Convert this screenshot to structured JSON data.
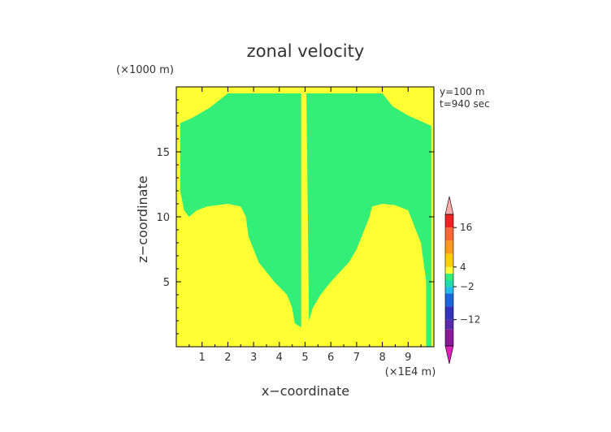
{
  "chart_data": {
    "type": "heatmap",
    "title": "zonal velocity",
    "xlabel": "x−coordinate",
    "ylabel": "z−coordinate",
    "x_unit": "(×1E4 m)",
    "y_unit": "(×1000 m)",
    "annotations": [
      "y=100 m",
      "t=940 sec"
    ],
    "xlim": [
      0,
      10
    ],
    "ylim": [
      0,
      20
    ],
    "x_ticks": [
      1,
      2,
      3,
      4,
      5,
      6,
      7,
      8,
      9
    ],
    "y_ticks": [
      5,
      10,
      15
    ],
    "grid": false,
    "background_color": "#ffff33",
    "regions": [
      {
        "color": "#33ee77",
        "outline": [
          [
            0.15,
            17.2
          ],
          [
            0.6,
            17.6
          ],
          [
            1.3,
            18.4
          ],
          [
            2.0,
            19.5
          ],
          [
            4.85,
            19.5
          ],
          [
            4.85,
            1.5
          ],
          [
            4.6,
            1.8
          ],
          [
            4.5,
            3.0
          ],
          [
            4.3,
            4.0
          ],
          [
            3.8,
            5.0
          ],
          [
            3.2,
            6.5
          ],
          [
            2.8,
            8.5
          ],
          [
            2.7,
            10.0
          ],
          [
            2.5,
            10.8
          ],
          [
            2.0,
            11.0
          ],
          [
            1.2,
            10.8
          ],
          [
            0.8,
            10.5
          ],
          [
            0.5,
            10.0
          ],
          [
            0.3,
            10.5
          ],
          [
            0.15,
            12.0
          ]
        ]
      },
      {
        "color": "#33ee77",
        "outline": [
          [
            5.05,
            19.5
          ],
          [
            8.0,
            19.5
          ],
          [
            8.4,
            18.5
          ],
          [
            9.0,
            17.8
          ],
          [
            9.9,
            17.0
          ],
          [
            9.9,
            0.0
          ],
          [
            9.7,
            0.0
          ],
          [
            9.7,
            5.0
          ],
          [
            9.5,
            8.0
          ],
          [
            9.2,
            9.5
          ],
          [
            9.0,
            10.5
          ],
          [
            8.5,
            10.9
          ],
          [
            8.0,
            11.0
          ],
          [
            7.6,
            10.8
          ],
          [
            7.5,
            10.0
          ],
          [
            7.3,
            9.0
          ],
          [
            7.0,
            7.5
          ],
          [
            6.7,
            6.5
          ],
          [
            6.0,
            5.0
          ],
          [
            5.6,
            4.0
          ],
          [
            5.3,
            3.0
          ],
          [
            5.15,
            2.0
          ]
        ]
      }
    ],
    "colorbar": {
      "tick_labels": [
        "16",
        "4",
        "−2",
        "−12"
      ],
      "tick_values": [
        16,
        4,
        -2,
        -12
      ],
      "segments": [
        {
          "from": -20,
          "to": -15,
          "color": "#8a1a9a"
        },
        {
          "from": -15,
          "to": -12,
          "color": "#5a2aaa"
        },
        {
          "from": -12,
          "to": -8,
          "color": "#3333bb"
        },
        {
          "from": -8,
          "to": -4,
          "color": "#1a66dd"
        },
        {
          "from": -4,
          "to": -2,
          "color": "#22bbee"
        },
        {
          "from": -2,
          "to": 0,
          "color": "#22ddaa"
        },
        {
          "from": 0,
          "to": 2,
          "color": "#33ee77"
        },
        {
          "from": 2,
          "to": 4,
          "color": "#ffff33"
        },
        {
          "from": 4,
          "to": 8,
          "color": "#ffcc11"
        },
        {
          "from": 8,
          "to": 12,
          "color": "#ff9922"
        },
        {
          "from": 12,
          "to": 16,
          "color": "#ff6633"
        },
        {
          "from": 16,
          "to": 20,
          "color": "#ee2222"
        }
      ],
      "top_arrow_color": "#f7a9a9",
      "bottom_arrow_color": "#dd22bb"
    }
  }
}
